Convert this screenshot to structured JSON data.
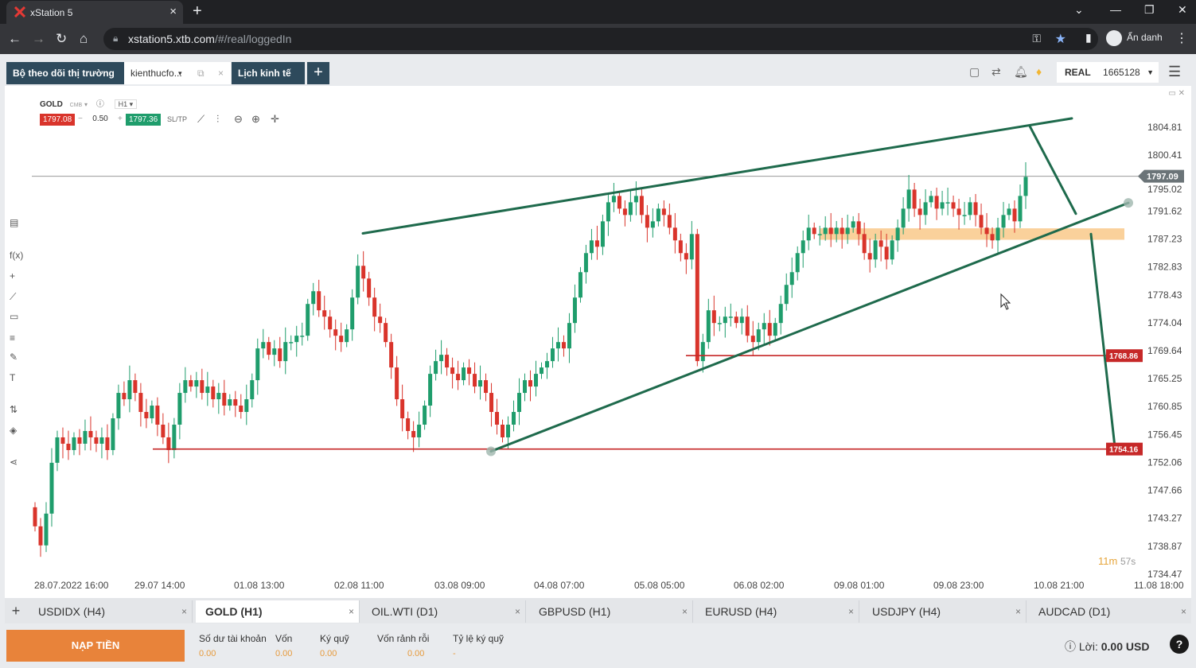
{
  "browser": {
    "tab_title": "xStation 5",
    "url_host": "xstation5.xtb.com",
    "url_path": "/#/real/loggedIn",
    "profile_label": "Ẩn danh"
  },
  "header": {
    "tabs": [
      {
        "label": "Bộ theo dõi thị trường"
      },
      {
        "label": "kienthucfo..."
      },
      {
        "label": "Lịch kinh tế"
      }
    ],
    "account_type": "REAL",
    "account_number": "1665128"
  },
  "chart": {
    "symbol": "GOLD",
    "symbol_suffix": "CMB",
    "timeframe": "H1",
    "sell_price": "1797.08",
    "volume": "0.50",
    "buy_price": "1797.36",
    "sltp_label": "SL/TP",
    "current_price_tag": "1797.09",
    "timer_main": "11m",
    "timer_sec": "57s",
    "tags": [
      "1768.86",
      "1754.16"
    ]
  },
  "chart_data": {
    "type": "candlestick",
    "y_axis_labels": [
      "1804.81",
      "1800.41",
      "1795.02",
      "1791.62",
      "1787.23",
      "1782.83",
      "1778.43",
      "1774.04",
      "1769.64",
      "1765.25",
      "1760.85",
      "1756.45",
      "1752.06",
      "1747.66",
      "1743.27",
      "1738.87",
      "1734.47"
    ],
    "x_axis_labels": [
      "28.07.2022 16:00",
      "29.07 14:00",
      "01.08 13:00",
      "02.08 11:00",
      "03.08 09:00",
      "04.08 07:00",
      "05.08 05:00",
      "06.08 02:00",
      "09.08 01:00",
      "09.08 23:00",
      "10.08 21:00",
      "11.08 18:00"
    ],
    "ylim": [
      1734.47,
      1806.5
    ],
    "horizontal_levels": [
      1797.09,
      1768.86,
      1754.16
    ],
    "series": [
      {
        "close": [
          1742,
          1739,
          1744,
          1752,
          1756,
          1755,
          1754,
          1756,
          1755,
          1757,
          1756,
          1755,
          1756,
          1754,
          1759,
          1763,
          1762,
          1765,
          1763,
          1760,
          1759,
          1761,
          1758,
          1756,
          1754,
          1758,
          1763,
          1765,
          1764,
          1765,
          1763,
          1764,
          1762,
          1763,
          1761,
          1762,
          1761,
          1760,
          1762,
          1765,
          1770,
          1771,
          1769,
          1770,
          1768,
          1771,
          1771,
          1772,
          1772,
          1777,
          1779,
          1776,
          1775,
          1773,
          1772,
          1771,
          1773,
          1778,
          1783,
          1781,
          1778,
          1775,
          1774,
          1771,
          1767,
          1762,
          1759,
          1757,
          1756,
          1758,
          1761,
          1766,
          1768,
          1769,
          1767,
          1766,
          1765,
          1767,
          1766,
          1764,
          1765,
          1763,
          1760,
          1758,
          1756,
          1758,
          1760,
          1763,
          1765,
          1764,
          1766,
          1767,
          1768,
          1770,
          1771,
          1770,
          1774,
          1778,
          1782,
          1785,
          1787,
          1786,
          1790,
          1793,
          1794,
          1792,
          1791,
          1793,
          1794,
          1791,
          1789,
          1790,
          1792,
          1791,
          1789,
          1787,
          1785,
          1784,
          1788,
          1768,
          1771,
          1776,
          1774,
          1774,
          1775,
          1775,
          1774,
          1775,
          1772,
          1771,
          1773,
          1774,
          1772,
          1774,
          1777,
          1780,
          1782,
          1785,
          1787,
          1789,
          1788,
          1788,
          1789,
          1788,
          1789,
          1788,
          1789,
          1790,
          1788,
          1785,
          1784,
          1787,
          1786,
          1784,
          1787,
          1789,
          1792,
          1795,
          1792,
          1791,
          1793,
          1794,
          1792,
          1793,
          1793,
          1792,
          1791,
          1791,
          1793,
          1791,
          1789,
          1788,
          1787,
          1789,
          1791,
          1792,
          1790,
          1794,
          1797
        ]
      }
    ]
  },
  "instrument_tabs": [
    {
      "label": "USDIDX (H4)"
    },
    {
      "label": "GOLD (H1)"
    },
    {
      "label": "OIL.WTI (D1)"
    },
    {
      "label": "GBPUSD (H1)"
    },
    {
      "label": "EURUSD (H4)"
    },
    {
      "label": "USDJPY (H4)"
    },
    {
      "label": "AUDCAD (D1)"
    }
  ],
  "bottom": {
    "deposit_label": "NẠP TIỀN",
    "fields": [
      {
        "label": "Số dư tài khoản",
        "value": "0.00"
      },
      {
        "label": "Vốn",
        "value": "0.00"
      },
      {
        "label": "Ký quỹ",
        "value": "0.00"
      },
      {
        "label": "Vốn rảnh rỗi",
        "value": "0.00"
      },
      {
        "label": "Tỷ lệ ký quỹ",
        "value": "-"
      }
    ],
    "profit_label": "Lời:",
    "profit_value": "0.00 USD",
    "help_label": "?"
  },
  "colors": {
    "bull": "#1f9d6c",
    "bear": "#d9342b",
    "trendline": "#1e6a4c",
    "support": "#c62828",
    "zone": "#f9c98a"
  }
}
